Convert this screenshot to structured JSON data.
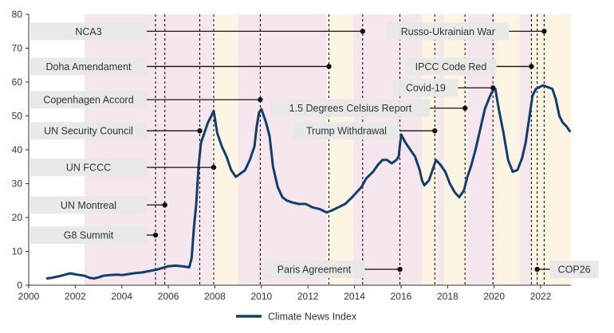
{
  "chart_data": {
    "type": "line",
    "xlim": [
      2000,
      2023.3
    ],
    "ylim": [
      0,
      80
    ],
    "x_ticks": [
      "2000",
      "2002",
      "2004",
      "2006",
      "2008",
      "2010",
      "2012",
      "2014",
      "2016",
      "2018",
      "2020",
      "2022"
    ],
    "y_ticks": [
      "0",
      "10",
      "20",
      "30",
      "40",
      "50",
      "60",
      "70",
      "80"
    ],
    "grid": false,
    "legend_position": "bottom-center",
    "colors": {
      "line": "#123e6b",
      "band_pink": "#f6e6ee",
      "band_yellow": "#fcf5e3",
      "label_box": "#e8e8e8",
      "axis": "#333333"
    },
    "bands": [
      {
        "from": 2002.4,
        "to": 2007.9,
        "color": "pink"
      },
      {
        "from": 2007.9,
        "to": 2009.0,
        "color": "yellow"
      },
      {
        "from": 2009.0,
        "to": 2012.8,
        "color": "pink"
      },
      {
        "from": 2012.8,
        "to": 2013.95,
        "color": "yellow"
      },
      {
        "from": 2013.95,
        "to": 2016.9,
        "color": "pink"
      },
      {
        "from": 2016.9,
        "to": 2017.6,
        "color": "yellow"
      },
      {
        "from": 2017.6,
        "to": 2017.85,
        "color": "pink"
      },
      {
        "from": 2017.85,
        "to": 2018.85,
        "color": "yellow"
      },
      {
        "from": 2018.85,
        "to": 2020.0,
        "color": "pink"
      },
      {
        "from": 2020.0,
        "to": 2021.1,
        "color": "yellow"
      },
      {
        "from": 2021.1,
        "to": 2021.55,
        "color": "pink"
      },
      {
        "from": 2021.55,
        "to": 2023.3,
        "color": "yellow"
      }
    ],
    "events": [
      {
        "label": "NCA3",
        "x": 2014.35,
        "y": 75,
        "side": "left"
      },
      {
        "label": "Doha Amendament",
        "x": 2012.9,
        "y": 64.6,
        "side": "left"
      },
      {
        "label": "Copenhagen Accord",
        "x": 2009.95,
        "y": 54.8,
        "side": "left"
      },
      {
        "label": "UN Security Council",
        "x": 2007.35,
        "y": 45.6,
        "side": "left"
      },
      {
        "label": "UN FCCC",
        "x": 2007.95,
        "y": 34.8,
        "side": "left"
      },
      {
        "label": "UN Montreal",
        "x": 2005.85,
        "y": 23.7,
        "side": "left"
      },
      {
        "label": "G8 Summit",
        "x": 2005.45,
        "y": 14.8,
        "side": "left"
      },
      {
        "label": "Russo-Ukrainian War",
        "x": 2022.15,
        "y": 75,
        "side": "right"
      },
      {
        "label": "IPCC Code Red",
        "x": 2021.6,
        "y": 64.6,
        "side": "right"
      },
      {
        "label": "Covid-19",
        "x": 2019.95,
        "y": 58.3,
        "side": "right"
      },
      {
        "label": "1.5 Degrees Celsius Report",
        "x": 2018.75,
        "y": 52.3,
        "side": "right"
      },
      {
        "label": "Trump Withdrawal",
        "x": 2017.45,
        "y": 45.6,
        "side": "right"
      },
      {
        "label": "Paris Agreement",
        "x": 2015.95,
        "y": 4.7,
        "side": "right"
      },
      {
        "label": "COP26",
        "x": 2021.85,
        "y": 4.7,
        "side": "left"
      }
    ],
    "series": [
      {
        "name": "Climate News Index",
        "x": [
          2000.8,
          2001.0,
          2001.2,
          2001.4,
          2001.6,
          2001.8,
          2002.0,
          2002.2,
          2002.4,
          2002.6,
          2002.8,
          2003.0,
          2003.2,
          2003.5,
          2003.8,
          2004.0,
          2004.3,
          2004.6,
          2004.9,
          2005.2,
          2005.5,
          2005.8,
          2006.0,
          2006.3,
          2006.6,
          2006.8,
          2006.9,
          2007.0,
          2007.1,
          2007.2,
          2007.3,
          2007.4,
          2007.5,
          2007.6,
          2007.7,
          2007.85,
          2007.95,
          2008.1,
          2008.3,
          2008.5,
          2008.7,
          2008.9,
          2009.1,
          2009.3,
          2009.5,
          2009.7,
          2009.8,
          2009.9,
          2010.0,
          2010.1,
          2010.2,
          2010.35,
          2010.5,
          2010.7,
          2010.9,
          2011.1,
          2011.3,
          2011.6,
          2011.9,
          2012.2,
          2012.5,
          2012.8,
          2013.0,
          2013.3,
          2013.6,
          2013.9,
          2014.1,
          2014.3,
          2014.5,
          2014.8,
          2015.0,
          2015.2,
          2015.4,
          2015.6,
          2015.8,
          2015.9,
          2016.0,
          2016.2,
          2016.4,
          2016.6,
          2016.8,
          2016.9,
          2017.0,
          2017.2,
          2017.4,
          2017.5,
          2017.7,
          2017.9,
          2018.1,
          2018.3,
          2018.5,
          2018.7,
          2018.85,
          2019.0,
          2019.2,
          2019.4,
          2019.6,
          2019.8,
          2019.95,
          2020.05,
          2020.2,
          2020.4,
          2020.6,
          2020.8,
          2021.0,
          2021.2,
          2021.35,
          2021.5,
          2021.65,
          2021.8,
          2021.95,
          2022.1,
          2022.3,
          2022.5,
          2022.65,
          2022.8,
          2022.95,
          2023.1,
          2023.25
        ],
        "y": [
          2.0,
          2.2,
          2.5,
          2.8,
          3.2,
          3.5,
          3.2,
          3.0,
          2.8,
          2.2,
          2.0,
          2.3,
          2.8,
          3.0,
          3.1,
          3.0,
          3.3,
          3.6,
          3.8,
          4.2,
          4.6,
          5.2,
          5.6,
          5.8,
          5.6,
          5.4,
          5.3,
          8.0,
          17.0,
          24.0,
          35.0,
          42.0,
          44.0,
          46.0,
          48.0,
          50.0,
          51.5,
          45.0,
          41.0,
          38.0,
          34.0,
          32.0,
          33.0,
          34.0,
          37.0,
          41.0,
          47.0,
          51.0,
          52.0,
          50.0,
          48.0,
          44.0,
          35.0,
          29.0,
          26.0,
          25.0,
          24.5,
          24.0,
          24.0,
          23.0,
          22.5,
          21.5,
          22.0,
          23.0,
          24.0,
          26.0,
          27.5,
          29.0,
          31.5,
          33.5,
          35.5,
          37.0,
          37.0,
          36.0,
          37.0,
          38.0,
          44.5,
          42.0,
          40.0,
          38.0,
          34.0,
          31.0,
          29.5,
          31.0,
          35.0,
          37.0,
          35.5,
          33.5,
          30.0,
          27.5,
          26.0,
          28.0,
          32.0,
          35.0,
          40.0,
          46.0,
          52.0,
          55.5,
          57.5,
          58.0,
          52.0,
          45.0,
          37.0,
          33.5,
          34.0,
          37.5,
          42.0,
          49.0,
          56.0,
          58.0,
          58.5,
          59.0,
          58.5,
          58.0,
          55.0,
          50.0,
          48.0,
          47.0,
          45.5
        ]
      }
    ]
  }
}
